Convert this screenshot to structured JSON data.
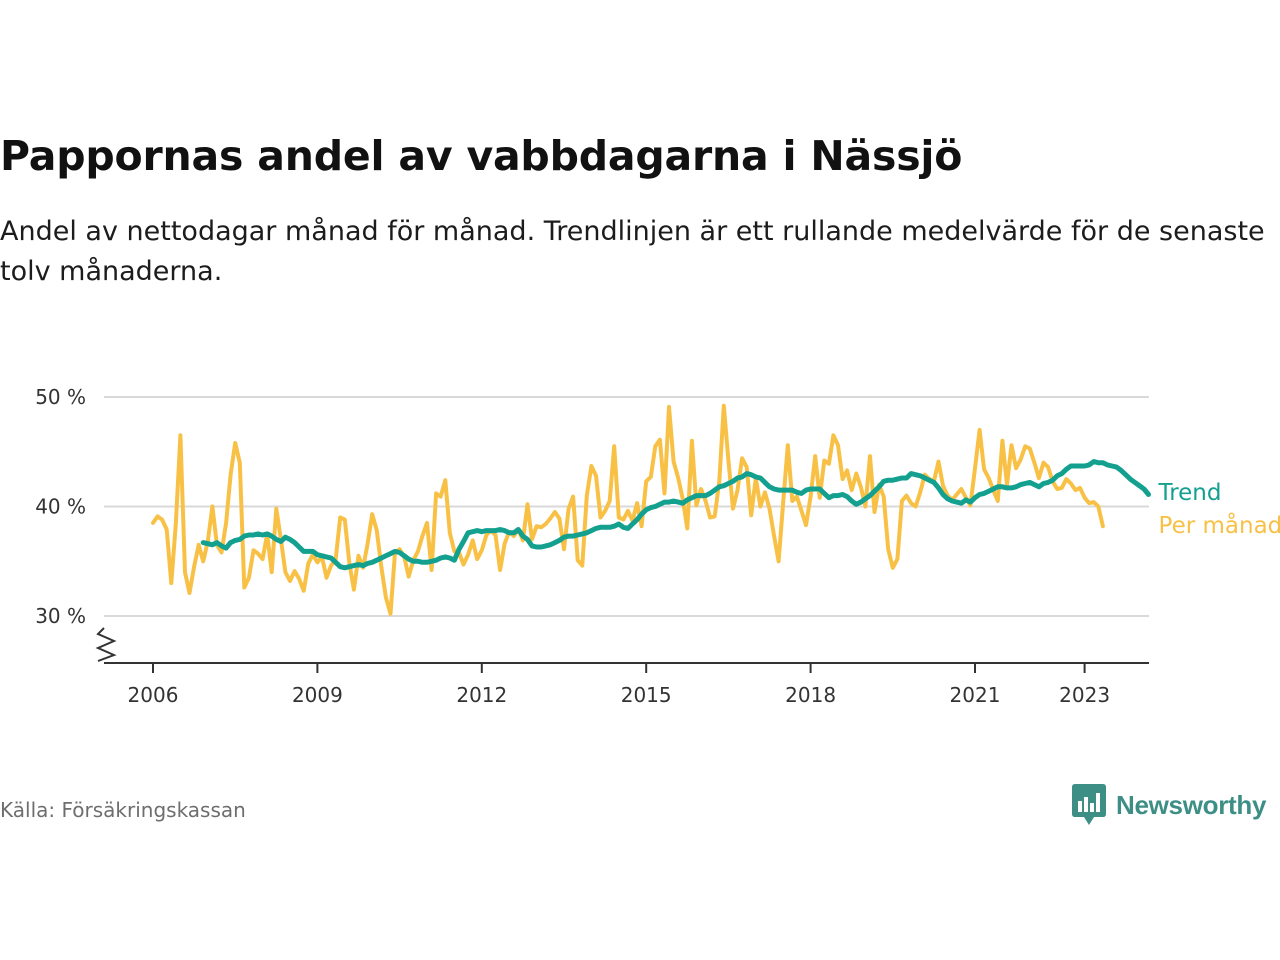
{
  "header": {
    "title": "Pappornas andel av vabbdagarna i Nässjö",
    "subtitle": "Andel av nettodagar månad för månad. Trendlinjen är ett rullande medelvärde för de senaste tolv månaderna."
  },
  "footer": {
    "source": "Källa: Försäkringskassan",
    "brand": "Newsworthy",
    "brand_color": "#3d8f86"
  },
  "chart_data": {
    "type": "line",
    "title": "Pappornas andel av vabbdagarna i Nässjö",
    "subtitle": "Andel av nettodagar månad för månad. Trendlinjen är ett rullande medelvärde för de senaste tolv månaderna.",
    "xlabel": "",
    "ylabel": "",
    "x_start": "2006-01",
    "x_ticks": [
      "2006",
      "2009",
      "2012",
      "2015",
      "2018",
      "2021",
      "2023"
    ],
    "y_ticks": [
      30,
      40,
      50
    ],
    "y_tick_labels": [
      "30 %",
      "40 %",
      "50 %"
    ],
    "ylim": [
      26,
      50
    ],
    "y_axis_break": true,
    "grid": true,
    "legend": "inline labels at line ends (right)",
    "series": [
      {
        "name": "Per månad",
        "color": "#f8c146",
        "start": "2006-01",
        "values": [
          38.5,
          39.1,
          38.8,
          37.9,
          33.0,
          38.4,
          46.5,
          34.0,
          32.1,
          34.5,
          36.5,
          35.0,
          36.8,
          40.0,
          36.5,
          35.8,
          38.5,
          42.9,
          45.8,
          44.0,
          32.6,
          33.5,
          36.0,
          35.7,
          35.2,
          37.5,
          34.0,
          39.8,
          37.0,
          34.0,
          33.2,
          34.1,
          33.4,
          32.3,
          34.8,
          35.6,
          34.9,
          35.4,
          33.5,
          34.6,
          35.2,
          39.0,
          38.8,
          34.8,
          32.4,
          35.5,
          34.4,
          36.6,
          39.3,
          37.8,
          34.5,
          31.7,
          30.2,
          35.8,
          36.1,
          35.4,
          33.6,
          35.1,
          35.9,
          37.3,
          38.5,
          34.2,
          41.2,
          40.9,
          42.4,
          37.6,
          35.9,
          35.8,
          34.7,
          35.6,
          36.9,
          35.2,
          36.0,
          37.4,
          37.8,
          37.4,
          34.2,
          36.6,
          37.7,
          37.3,
          37.9,
          36.9,
          40.2,
          37.0,
          38.2,
          38.1,
          38.4,
          38.9,
          39.5,
          38.9,
          36.1,
          39.8,
          40.9,
          35.1,
          34.6,
          41.0,
          43.7,
          42.8,
          39.0,
          39.6,
          40.5,
          45.5,
          39.0,
          38.8,
          39.6,
          38.7,
          40.3,
          38.2,
          42.3,
          42.7,
          45.5,
          46.1,
          41.2,
          49.1,
          44.1,
          42.6,
          40.7,
          38.0,
          46.0,
          40.1,
          41.6,
          40.5,
          39.0,
          39.1,
          42.3,
          49.2,
          44.2,
          39.8,
          41.5,
          44.4,
          43.6,
          39.2,
          42.6,
          40.0,
          41.3,
          39.8,
          37.3,
          35.0,
          40.4,
          45.6,
          40.5,
          40.9,
          39.6,
          38.3,
          40.9,
          44.6,
          40.8,
          44.2,
          43.9,
          46.5,
          45.6,
          42.5,
          43.3,
          41.5,
          43.0,
          41.8,
          40.0,
          44.6,
          39.5,
          42.0,
          40.9,
          36.1,
          34.4,
          35.2,
          40.5,
          41.0,
          40.3,
          40.0,
          41.3,
          42.9,
          42.5,
          42.3,
          44.1,
          41.9,
          41.0,
          40.6,
          41.1,
          41.6,
          40.8,
          40.1,
          43.5,
          47.0,
          43.4,
          42.6,
          41.5,
          40.5,
          46.0,
          42.0,
          45.6,
          43.5,
          44.3,
          45.5,
          45.3,
          44.0,
          42.6,
          44.0,
          43.6,
          42.3,
          41.6,
          41.7,
          42.5,
          42.1,
          41.5,
          41.7,
          40.8,
          40.3,
          40.4,
          40.0,
          38.2
        ]
      },
      {
        "name": "Trend",
        "color": "#13a08f",
        "start": "2006-12",
        "values": [
          36.7,
          36.6,
          36.5,
          36.7,
          36.4,
          36.2,
          36.7,
          36.9,
          37.0,
          37.3,
          37.4,
          37.4,
          37.5,
          37.4,
          37.5,
          37.3,
          37.0,
          36.8,
          37.2,
          37.0,
          36.7,
          36.3,
          35.9,
          35.9,
          35.9,
          35.6,
          35.5,
          35.4,
          35.3,
          34.9,
          34.5,
          34.4,
          34.5,
          34.6,
          34.7,
          34.6,
          34.8,
          34.9,
          35.1,
          35.3,
          35.5,
          35.7,
          35.9,
          35.8,
          35.5,
          35.2,
          35.0,
          35.0,
          34.9,
          34.9,
          35.0,
          35.1,
          35.3,
          35.4,
          35.3,
          35.1,
          36.1,
          36.8,
          37.6,
          37.7,
          37.8,
          37.7,
          37.8,
          37.8,
          37.8,
          37.9,
          37.8,
          37.6,
          37.6,
          37.9,
          37.3,
          37.0,
          36.4,
          36.3,
          36.3,
          36.4,
          36.5,
          36.7,
          36.9,
          37.2,
          37.3,
          37.3,
          37.4,
          37.5,
          37.6,
          37.8,
          38.0,
          38.1,
          38.1,
          38.1,
          38.2,
          38.4,
          38.1,
          38.0,
          38.4,
          38.8,
          39.3,
          39.7,
          39.9,
          40.0,
          40.2,
          40.4,
          40.4,
          40.5,
          40.4,
          40.3,
          40.6,
          40.8,
          41.0,
          41.0,
          41.0,
          41.2,
          41.5,
          41.8,
          41.9,
          42.1,
          42.3,
          42.6,
          42.7,
          43.0,
          42.9,
          42.7,
          42.6,
          42.2,
          41.8,
          41.6,
          41.5,
          41.5,
          41.5,
          41.5,
          41.3,
          41.2,
          41.5,
          41.6,
          41.6,
          41.6,
          41.2,
          40.8,
          41.0,
          41.0,
          41.1,
          40.9,
          40.5,
          40.2,
          40.4,
          40.7,
          41.0,
          41.4,
          41.8,
          42.3,
          42.4,
          42.4,
          42.5,
          42.6,
          42.6,
          43.0,
          42.9,
          42.8,
          42.6,
          42.4,
          42.2,
          41.7,
          41.1,
          40.7,
          40.5,
          40.4,
          40.3,
          40.6,
          40.4,
          40.8,
          41.1,
          41.2,
          41.4,
          41.6,
          41.8,
          41.8,
          41.7,
          41.7,
          41.8,
          42.0,
          42.1,
          42.2,
          42.0,
          41.8,
          42.1,
          42.2,
          42.4,
          42.8,
          43.0,
          43.4,
          43.7,
          43.7,
          43.7,
          43.7,
          43.8,
          44.1,
          44.0,
          44.0,
          43.8,
          43.7,
          43.6,
          43.3,
          42.9,
          42.5,
          42.2,
          41.9,
          41.6,
          41.1
        ]
      }
    ]
  }
}
